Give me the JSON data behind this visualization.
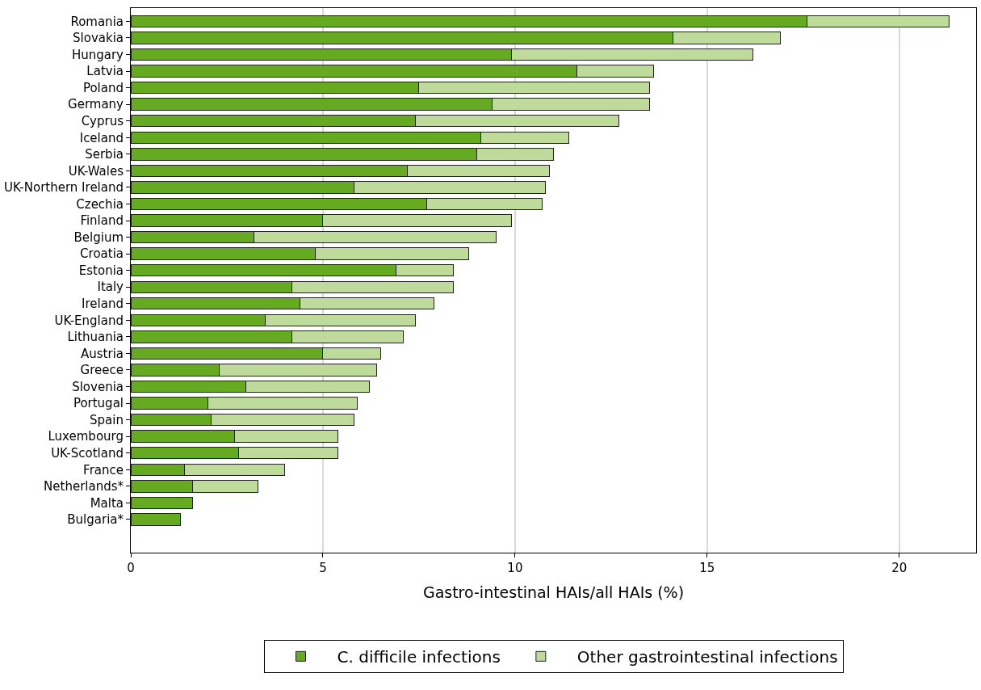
{
  "chart_data": {
    "type": "bar",
    "orientation": "horizontal",
    "stacked": true,
    "xlabel": "Gastro-intestinal HAIs/all HAIs (%)",
    "categories": [
      "Romania",
      "Slovakia",
      "Hungary",
      "Latvia",
      "Poland",
      "Germany",
      "Cyprus",
      "Iceland",
      "Serbia",
      "UK-Wales",
      "UK-Northern Ireland",
      "Czechia",
      "Finland",
      "Belgium",
      "Croatia",
      "Estonia",
      "Italy",
      "Ireland",
      "UK-England",
      "Lithuania",
      "Austria",
      "Greece",
      "Slovenia",
      "Portugal",
      "Spain",
      "Luxembourg",
      "UK-Scotland",
      "France",
      "Netherlands*",
      "Malta",
      "Bulgaria*"
    ],
    "series": [
      {
        "name": "C. difficile infections",
        "color": "#66aa22",
        "values": [
          17.6,
          14.1,
          9.9,
          11.6,
          7.5,
          9.4,
          7.4,
          9.1,
          9.0,
          7.2,
          5.8,
          7.7,
          5.0,
          3.2,
          4.8,
          6.9,
          4.2,
          4.4,
          3.5,
          4.2,
          5.0,
          2.3,
          3.0,
          2.0,
          2.1,
          2.7,
          2.8,
          1.4,
          1.6,
          1.6,
          1.3
        ]
      },
      {
        "name": "Other gastrointestinal infections",
        "color": "#bedb9c",
        "values": [
          3.7,
          2.8,
          6.3,
          2.0,
          6.0,
          4.1,
          5.3,
          2.3,
          2.0,
          3.7,
          5.0,
          3.0,
          4.9,
          6.3,
          4.0,
          1.5,
          4.2,
          3.5,
          3.9,
          2.9,
          1.5,
          4.1,
          3.2,
          3.9,
          3.7,
          2.7,
          2.6,
          2.6,
          1.7,
          null,
          null
        ]
      }
    ],
    "xlim": [
      0,
      22
    ],
    "xticks": [
      0,
      5,
      10,
      15,
      20
    ],
    "grid": "x",
    "legend": "bottom"
  }
}
